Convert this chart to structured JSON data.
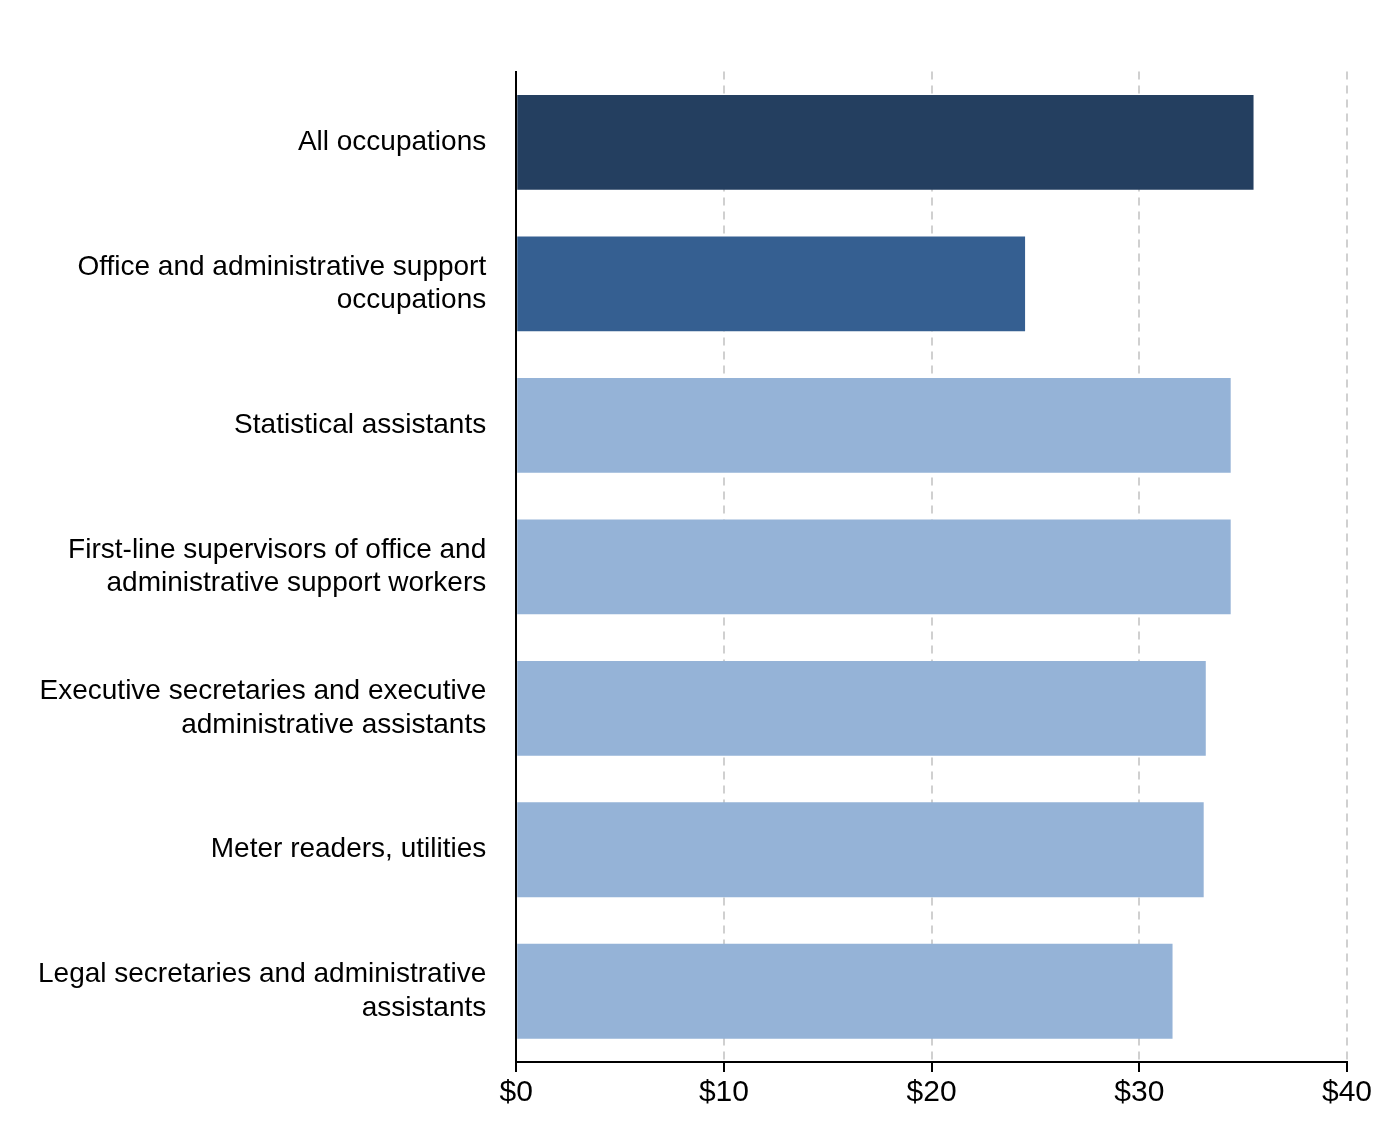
{
  "chart_data": {
    "type": "bar",
    "orientation": "horizontal",
    "categories": [
      "All occupations",
      "Office and administrative support occupations",
      "Statistical assistants",
      "First-line supervisors of office and administrative support workers",
      "Executive secretaries and executive administrative assistants",
      "Meter readers, utilities",
      "Legal secretaries and administrative assistants"
    ],
    "values": [
      35.5,
      24.5,
      34.4,
      34.4,
      33.2,
      33.1,
      31.6
    ],
    "colors": [
      "#243f60",
      "#355f91",
      "#95b3d7",
      "#95b3d7",
      "#95b3d7",
      "#95b3d7",
      "#95b3d7"
    ],
    "xlim": [
      0,
      40
    ],
    "xticks": [
      {
        "value": 0,
        "label": "$0"
      },
      {
        "value": 10,
        "label": "$10"
      },
      {
        "value": 20,
        "label": "$20"
      },
      {
        "value": 30,
        "label": "$30"
      },
      {
        "value": 40,
        "label": "$40"
      }
    ],
    "grid": "x",
    "legend": false
  }
}
